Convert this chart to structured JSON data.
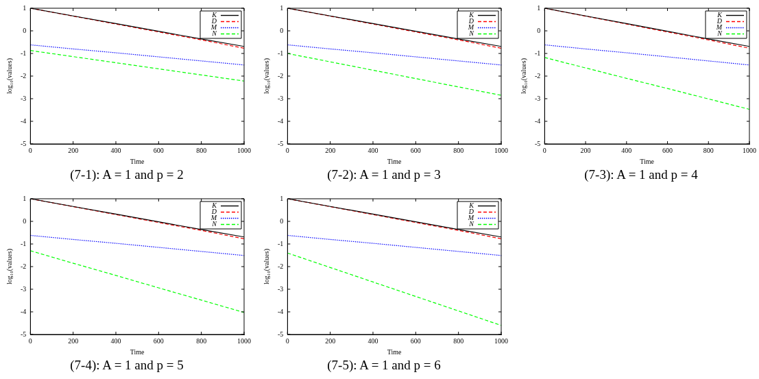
{
  "chart_data": [
    {
      "type": "line",
      "title": "(7-1): A = 1 and p = 2",
      "xlabel": "Time",
      "ylabel": "log₁₀(values)",
      "x": [
        0,
        200,
        400,
        600,
        800,
        1000
      ],
      "xlim": [
        0,
        1000
      ],
      "xticks": [
        0,
        200,
        400,
        600,
        800,
        1000
      ],
      "ylim": [
        -5,
        1
      ],
      "yticks": [
        -5,
        -4,
        -3,
        -2,
        -1,
        0,
        1
      ],
      "legend": "top right",
      "marker": "none",
      "series": [
        {
          "name": "K",
          "color": "#000000",
          "line_style": "solid",
          "values": [
            1,
            0.66,
            0.32,
            -0.02,
            -0.36,
            -0.69
          ]
        },
        {
          "name": "D",
          "color": "#ff0000",
          "line_style": "dashed",
          "values": [
            1,
            0.65,
            0.3,
            -0.05,
            -0.4,
            -0.77
          ]
        },
        {
          "name": "M",
          "color": "#0000ff",
          "line_style": "dotted",
          "values": [
            -0.62,
            -0.8,
            -0.97,
            -1.15,
            -1.33,
            -1.51
          ]
        },
        {
          "name": "N",
          "color": "#00ff00",
          "line_style": "dashed",
          "values": [
            -0.87,
            -1.14,
            -1.41,
            -1.68,
            -1.95,
            -2.22
          ]
        }
      ]
    },
    {
      "type": "line",
      "title": "(7-2): A = 1 and p = 3",
      "xlabel": "Time",
      "ylabel": "log₁₀(values)",
      "x": [
        0,
        200,
        400,
        600,
        800,
        1000
      ],
      "xlim": [
        0,
        1000
      ],
      "xticks": [
        0,
        200,
        400,
        600,
        800,
        1000
      ],
      "ylim": [
        -5,
        1
      ],
      "yticks": [
        -5,
        -4,
        -3,
        -2,
        -1,
        0,
        1
      ],
      "legend": "top right",
      "marker": "none",
      "series": [
        {
          "name": "K",
          "color": "#000000",
          "line_style": "solid",
          "values": [
            1,
            0.66,
            0.32,
            -0.02,
            -0.36,
            -0.69
          ]
        },
        {
          "name": "D",
          "color": "#ff0000",
          "line_style": "dashed",
          "values": [
            1,
            0.65,
            0.3,
            -0.05,
            -0.4,
            -0.77
          ]
        },
        {
          "name": "M",
          "color": "#0000ff",
          "line_style": "dotted",
          "values": [
            -0.62,
            -0.8,
            -0.97,
            -1.15,
            -1.33,
            -1.51
          ]
        },
        {
          "name": "N",
          "color": "#00ff00",
          "line_style": "dashed",
          "values": [
            -1.0,
            -1.37,
            -1.74,
            -2.11,
            -2.48,
            -2.85
          ]
        }
      ]
    },
    {
      "type": "line",
      "title": "(7-3): A = 1 and p = 4",
      "xlabel": "Time",
      "ylabel": "log₁₀(values)",
      "x": [
        0,
        200,
        400,
        600,
        800,
        1000
      ],
      "xlim": [
        0,
        1000
      ],
      "xticks": [
        0,
        200,
        400,
        600,
        800,
        1000
      ],
      "ylim": [
        -5,
        1
      ],
      "yticks": [
        -5,
        -4,
        -3,
        -2,
        -1,
        0,
        1
      ],
      "legend": "top right",
      "marker": "none",
      "series": [
        {
          "name": "K",
          "color": "#000000",
          "line_style": "solid",
          "values": [
            1,
            0.66,
            0.32,
            -0.02,
            -0.36,
            -0.69
          ]
        },
        {
          "name": "D",
          "color": "#ff0000",
          "line_style": "dashed",
          "values": [
            1,
            0.65,
            0.3,
            -0.05,
            -0.4,
            -0.77
          ]
        },
        {
          "name": "M",
          "color": "#0000ff",
          "line_style": "dotted",
          "values": [
            -0.62,
            -0.8,
            -0.97,
            -1.15,
            -1.33,
            -1.51
          ]
        },
        {
          "name": "N",
          "color": "#00ff00",
          "line_style": "dashed",
          "values": [
            -1.18,
            -1.64,
            -2.1,
            -2.55,
            -3.01,
            -3.47
          ]
        }
      ]
    },
    {
      "type": "line",
      "title": "(7-4): A = 1 and p = 5",
      "xlabel": "Time",
      "ylabel": "log₁₀(values)",
      "x": [
        0,
        200,
        400,
        600,
        800,
        1000
      ],
      "xlim": [
        0,
        1000
      ],
      "xticks": [
        0,
        200,
        400,
        600,
        800,
        1000
      ],
      "ylim": [
        -5,
        1
      ],
      "yticks": [
        -5,
        -4,
        -3,
        -2,
        -1,
        0,
        1
      ],
      "legend": "top right",
      "marker": "none",
      "series": [
        {
          "name": "K",
          "color": "#000000",
          "line_style": "solid",
          "values": [
            1,
            0.66,
            0.32,
            -0.02,
            -0.36,
            -0.69
          ]
        },
        {
          "name": "D",
          "color": "#ff0000",
          "line_style": "dashed",
          "values": [
            1,
            0.65,
            0.3,
            -0.05,
            -0.4,
            -0.77
          ]
        },
        {
          "name": "M",
          "color": "#0000ff",
          "line_style": "dotted",
          "values": [
            -0.62,
            -0.8,
            -0.97,
            -1.15,
            -1.33,
            -1.51
          ]
        },
        {
          "name": "N",
          "color": "#00ff00",
          "line_style": "dashed",
          "values": [
            -1.3,
            -1.85,
            -2.39,
            -2.94,
            -3.48,
            -4.03
          ]
        }
      ]
    },
    {
      "type": "line",
      "title": "(7-5): A = 1 and p = 6",
      "xlabel": "Time",
      "ylabel": "log₁₀(values)",
      "x": [
        0,
        200,
        400,
        600,
        800,
        1000
      ],
      "xlim": [
        0,
        1000
      ],
      "xticks": [
        0,
        200,
        400,
        600,
        800,
        1000
      ],
      "ylim": [
        -5,
        1
      ],
      "yticks": [
        -5,
        -4,
        -3,
        -2,
        -1,
        0,
        1
      ],
      "legend": "top right",
      "marker": "none",
      "series": [
        {
          "name": "K",
          "color": "#000000",
          "line_style": "solid",
          "values": [
            1,
            0.66,
            0.32,
            -0.02,
            -0.36,
            -0.69
          ]
        },
        {
          "name": "D",
          "color": "#ff0000",
          "line_style": "dashed",
          "values": [
            1,
            0.65,
            0.3,
            -0.05,
            -0.4,
            -0.77
          ]
        },
        {
          "name": "M",
          "color": "#0000ff",
          "line_style": "dotted",
          "values": [
            -0.62,
            -0.8,
            -0.97,
            -1.15,
            -1.33,
            -1.51
          ]
        },
        {
          "name": "N",
          "color": "#00ff00",
          "line_style": "dashed",
          "values": [
            -1.4,
            -2.04,
            -2.68,
            -3.32,
            -3.96,
            -4.6
          ]
        }
      ]
    }
  ]
}
